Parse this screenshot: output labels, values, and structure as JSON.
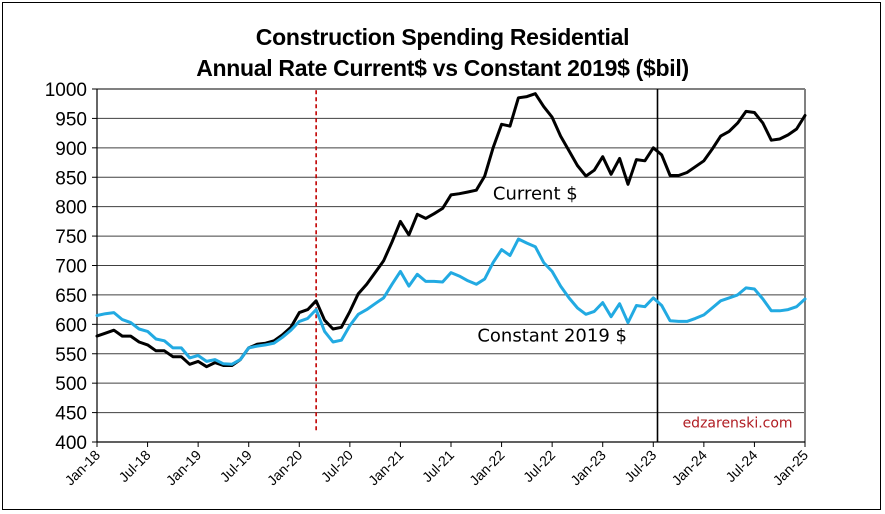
{
  "chart_data": {
    "type": "line",
    "title": "Construction Spending Residential",
    "subtitle": "Annual Rate Current$ vs Constant 2019$ ($bil)",
    "xlabel": "",
    "ylabel": "",
    "ylim": [
      400,
      1000
    ],
    "yticks": [
      400,
      450,
      500,
      550,
      600,
      650,
      700,
      750,
      800,
      850,
      900,
      950,
      1000
    ],
    "x_start": "Jan-18",
    "x_end": "Jan-25",
    "x_unit": "month",
    "xtick_labels": [
      "Jan-18",
      "Jul-18",
      "Jan-19",
      "Jul-19",
      "Jan-20",
      "Jul-20",
      "Jan-21",
      "Jul-21",
      "Jan-22",
      "Jul-22",
      "Jan-23",
      "Jul-23",
      "Jan-24",
      "Jul-24",
      "Jan-25"
    ],
    "grid": true,
    "legend": "none",
    "series": [
      {
        "name": "Current $",
        "color": "#000000",
        "values": [
          580,
          585,
          590,
          580,
          580,
          570,
          565,
          555,
          555,
          545,
          545,
          532,
          537,
          528,
          535,
          530,
          530,
          540,
          560,
          566,
          568,
          572,
          582,
          595,
          620,
          625,
          640,
          607,
          592,
          595,
          622,
          652,
          668,
          688,
          708,
          740,
          775,
          752,
          787,
          780,
          788,
          797,
          820,
          822,
          825,
          828,
          852,
          900,
          940,
          937,
          985,
          987,
          992,
          970,
          952,
          920,
          895,
          870,
          852,
          862,
          885,
          855,
          882,
          838,
          880,
          878,
          900,
          888,
          853,
          853,
          858,
          868,
          878,
          898,
          920,
          928,
          942,
          962,
          960,
          942,
          913,
          915,
          922,
          932,
          955
        ]
      },
      {
        "name": "Constant 2019 $",
        "color": "#22aae2",
        "values": [
          615,
          618,
          620,
          608,
          603,
          592,
          588,
          575,
          572,
          560,
          560,
          543,
          547,
          537,
          540,
          533,
          532,
          540,
          560,
          563,
          565,
          568,
          578,
          590,
          605,
          610,
          625,
          588,
          570,
          573,
          598,
          617,
          625,
          635,
          645,
          668,
          690,
          665,
          685,
          673,
          673,
          672,
          688,
          682,
          674,
          668,
          677,
          705,
          727,
          717,
          745,
          738,
          732,
          705,
          690,
          665,
          645,
          628,
          617,
          622,
          637,
          613,
          635,
          603,
          632,
          630,
          645,
          632,
          606,
          605,
          605,
          610,
          616,
          628,
          640,
          645,
          650,
          662,
          660,
          643,
          623,
          623,
          625,
          630,
          643
        ]
      }
    ],
    "annotations": [
      {
        "text": "Current $",
        "x_month_index": 52,
        "y": 812
      },
      {
        "text": "Constant 2019 $",
        "x_month_index": 54,
        "y": 571
      },
      {
        "text": "edzarenski.com",
        "x_month_index": 76,
        "y": 425
      }
    ],
    "reference_lines": [
      {
        "style": "dashed",
        "color": "#c00000",
        "x_month_index": 26,
        "y_from": 420,
        "y_to": 1000
      },
      {
        "style": "solid",
        "color": "#000000",
        "x_month_index": 66.5,
        "y_from": 400,
        "y_to": 1000
      }
    ]
  }
}
